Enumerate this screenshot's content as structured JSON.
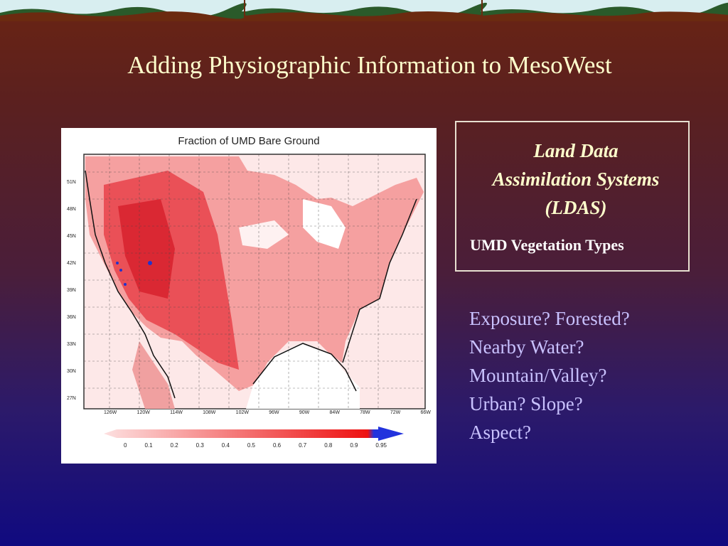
{
  "slide": {
    "title": "Adding Physiographic Information to MesoWest",
    "map": {
      "title": "Fraction of UMD Bare Ground",
      "lat_labels": [
        "51N",
        "48N",
        "45N",
        "42N",
        "39N",
        "36N",
        "33N",
        "30N",
        "27N"
      ],
      "lon_labels": [
        "126W",
        "120W",
        "114W",
        "108W",
        "102W",
        "96W",
        "90W",
        "84W",
        "78W",
        "72W",
        "66W"
      ],
      "colorbar_labels": [
        "0",
        "0.1",
        "0.2",
        "0.3",
        "0.4",
        "0.5",
        "0.6",
        "0.7",
        "0.8",
        "0.9",
        "0.95"
      ]
    },
    "ldas_box": {
      "title_line1": "Land Data",
      "title_line2": "Assimilation Systems",
      "title_line3": "(LDAS)",
      "subtitle": "UMD Vegetation Types"
    },
    "questions": [
      "Exposure? Forested?",
      "Nearby Water?",
      "Mountain/Valley?",
      "Urban? Slope?",
      "Aspect?"
    ],
    "colors": {
      "title_text": "#ffffcc",
      "question_text": "#c9c2ff",
      "map_fill": "#f59a9a",
      "map_fill_dark": "#e8242a"
    }
  }
}
